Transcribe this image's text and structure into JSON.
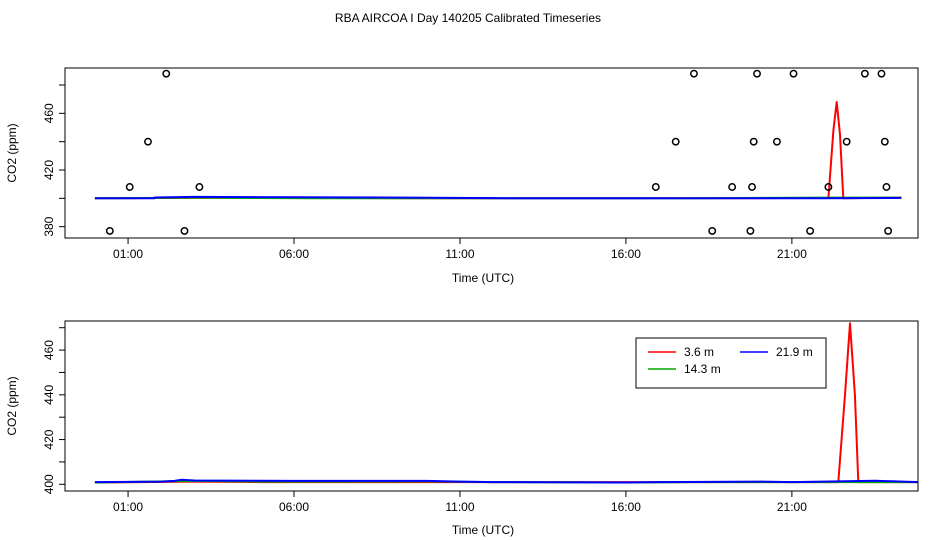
{
  "title": "RBA AIRCOA I  Day 140205  Calibrated Timeseries",
  "chart_data": [
    {
      "type": "line",
      "xlabel": "Time (UTC)",
      "ylabel": "CO2 (ppm)",
      "xlim": [
        -0.9,
        24.8
      ],
      "ylim": [
        372,
        492
      ],
      "xticks": [
        {
          "value": 1,
          "label": "01:00"
        },
        {
          "value": 6,
          "label": "06:00"
        },
        {
          "value": 11,
          "label": "11:00"
        },
        {
          "value": 16,
          "label": "16:00"
        },
        {
          "value": 21,
          "label": "21:00"
        }
      ],
      "yticks": [
        {
          "value": 380,
          "label": "380"
        },
        {
          "value": 400,
          "label": ""
        },
        {
          "value": 420,
          "label": "420"
        },
        {
          "value": 440,
          "label": ""
        },
        {
          "value": 460,
          "label": "460"
        },
        {
          "value": 480,
          "label": ""
        }
      ],
      "series": [
        {
          "color": "#ff0000",
          "points": [
            [
              0,
              400
            ],
            [
              5,
              400.5
            ],
            [
              10,
              400
            ],
            [
              15,
              400
            ],
            [
              20,
              400.2
            ],
            [
              22.1,
              400.3
            ],
            [
              22.25,
              448
            ],
            [
              22.35,
              468
            ],
            [
              22.45,
              445
            ],
            [
              22.55,
              400
            ],
            [
              24.3,
              400.5
            ]
          ]
        },
        {
          "color": "#00aa00",
          "points": [
            [
              0,
              400
            ],
            [
              3,
              400.5
            ],
            [
              6.5,
              400
            ],
            [
              12.5,
              400
            ],
            [
              16,
              400
            ],
            [
              18,
              400
            ],
            [
              22,
              400.5
            ],
            [
              24.3,
              400.5
            ]
          ]
        },
        {
          "color": "#0000ff",
          "points": [
            [
              0,
              400
            ],
            [
              1.8,
              400
            ],
            [
              1.8,
              400.6
            ],
            [
              3,
              401
            ],
            [
              9.5,
              400.5
            ],
            [
              12.5,
              400
            ],
            [
              16,
              400
            ],
            [
              18,
              400
            ],
            [
              22,
              400
            ],
            [
              24.3,
              400.3
            ]
          ]
        }
      ],
      "outlier_markers": {
        "style": "open-circle",
        "points": [
          [
            0.45,
            377
          ],
          [
            1.05,
            408
          ],
          [
            1.6,
            440
          ],
          [
            2.15,
            488
          ],
          [
            2.7,
            377
          ],
          [
            3.15,
            408
          ],
          [
            16.9,
            408
          ],
          [
            17.5,
            440
          ],
          [
            18.05,
            488
          ],
          [
            18.6,
            377
          ],
          [
            19.2,
            408
          ],
          [
            19.75,
            377
          ],
          [
            19.8,
            408
          ],
          [
            19.85,
            440
          ],
          [
            19.95,
            488
          ],
          [
            20.55,
            440
          ],
          [
            21.05,
            488
          ],
          [
            21.55,
            377
          ],
          [
            22.1,
            408
          ],
          [
            22.65,
            440
          ],
          [
            23.2,
            488
          ],
          [
            23.7,
            488
          ],
          [
            23.8,
            440
          ],
          [
            23.85,
            408
          ],
          [
            23.9,
            377
          ]
        ]
      }
    },
    {
      "type": "line",
      "xlabel": "Time (UTC)",
      "ylabel": "CO2 (ppm)",
      "xlim": [
        -0.9,
        24.8
      ],
      "ylim": [
        397,
        473
      ],
      "xticks": [
        {
          "value": 1,
          "label": "01:00"
        },
        {
          "value": 6,
          "label": "06:00"
        },
        {
          "value": 11,
          "label": "11:00"
        },
        {
          "value": 16,
          "label": "16:00"
        },
        {
          "value": 21,
          "label": "21:00"
        }
      ],
      "yticks": [
        {
          "value": 400,
          "label": "400"
        },
        {
          "value": 410,
          "label": ""
        },
        {
          "value": 420,
          "label": "420"
        },
        {
          "value": 430,
          "label": ""
        },
        {
          "value": 440,
          "label": "440"
        },
        {
          "value": 450,
          "label": ""
        },
        {
          "value": 460,
          "label": "460"
        },
        {
          "value": 470,
          "label": ""
        }
      ],
      "legend": {
        "position": "top-right",
        "entries": [
          {
            "label": "3.6 m",
            "color": "#ff0000"
          },
          {
            "label": "14.3 m",
            "color": "#00aa00"
          },
          {
            "label": "21.9 m",
            "color": "#0000ff"
          }
        ]
      },
      "series": [
        {
          "name": "3.6 m",
          "color": "#ff0000",
          "points": [
            [
              0,
              400.8
            ],
            [
              3,
              401.2
            ],
            [
              5,
              401
            ],
            [
              10,
              401
            ],
            [
              15,
              401
            ],
            [
              20,
              401
            ],
            [
              22.4,
              401
            ],
            [
              22.6,
              440
            ],
            [
              22.75,
              472
            ],
            [
              22.9,
              440
            ],
            [
              23.0,
              401
            ],
            [
              24.8,
              401
            ]
          ]
        },
        {
          "name": "14.3 m",
          "color": "#00aa00",
          "points": [
            [
              0,
              400.8
            ],
            [
              3,
              401.5
            ],
            [
              5,
              401.2
            ],
            [
              10,
              401.3
            ],
            [
              12,
              401
            ],
            [
              16,
              400.8
            ],
            [
              18,
              401
            ],
            [
              20,
              401
            ],
            [
              22,
              401
            ],
            [
              24.8,
              401
            ]
          ]
        },
        {
          "name": "21.9 m",
          "color": "#0000ff",
          "points": [
            [
              0,
              401
            ],
            [
              2,
              401.2
            ],
            [
              2.4,
              401.5
            ],
            [
              2.6,
              402
            ],
            [
              3,
              401.7
            ],
            [
              6,
              401.5
            ],
            [
              10,
              401.5
            ],
            [
              11,
              401.2
            ],
            [
              12,
              401
            ],
            [
              16,
              400.8
            ],
            [
              17,
              401
            ],
            [
              20,
              401.2
            ],
            [
              21,
              401
            ],
            [
              23.5,
              401.6
            ],
            [
              24.8,
              401
            ]
          ]
        }
      ]
    }
  ]
}
